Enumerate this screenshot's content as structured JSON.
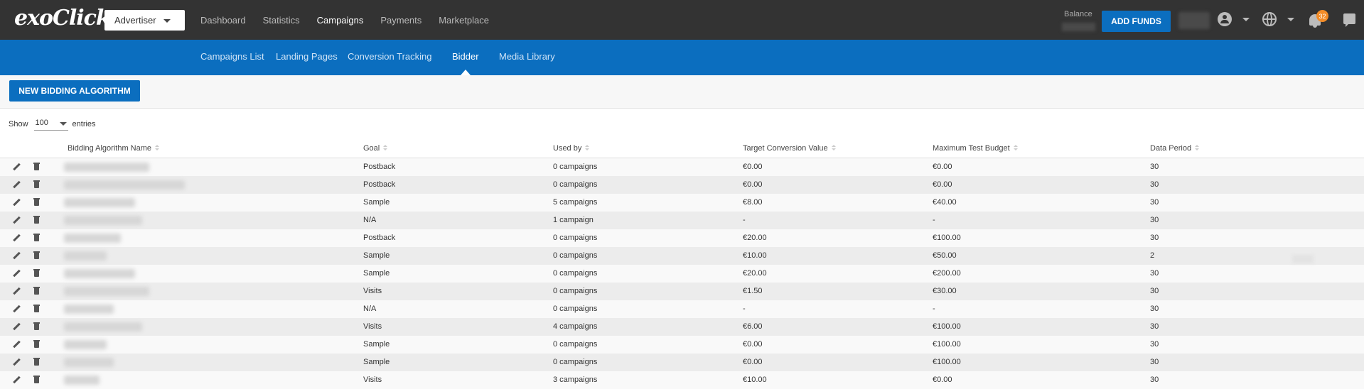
{
  "header": {
    "logo": "exoClick",
    "role_select": "Advertiser",
    "nav": [
      {
        "label": "Dashboard",
        "active": false
      },
      {
        "label": "Statistics",
        "active": false
      },
      {
        "label": "Campaigns",
        "active": true
      },
      {
        "label": "Payments",
        "active": false
      },
      {
        "label": "Marketplace",
        "active": false
      }
    ],
    "balance_label": "Balance",
    "add_funds_label": "ADD FUNDS",
    "notification_count": "32",
    "icons": [
      "user-icon",
      "globe-icon",
      "bell-icon",
      "chat-icon"
    ]
  },
  "subnav": {
    "items": [
      {
        "label": "Campaigns List",
        "active": false
      },
      {
        "label": "Landing Pages",
        "active": false
      },
      {
        "label": "Conversion Tracking",
        "active": false
      },
      {
        "label": "Bidder",
        "active": true
      },
      {
        "label": "Media Library",
        "active": false
      }
    ]
  },
  "toolbar": {
    "new_button_label": "NEW BIDDING ALGORITHM"
  },
  "entries": {
    "show_label": "Show",
    "value": "100",
    "suffix_label": "entries"
  },
  "table": {
    "columns": [
      "Bidding Algorithm Name",
      "Goal",
      "Used by",
      "Target Conversion Value",
      "Maximum Test Budget",
      "Data Period"
    ],
    "rows": [
      {
        "goal": "Postback",
        "used_by": "0 campaigns",
        "target": "€0.00",
        "budget": "€0.00",
        "period": "30"
      },
      {
        "goal": "Postback",
        "used_by": "0 campaigns",
        "target": "€0.00",
        "budget": "€0.00",
        "period": "30"
      },
      {
        "goal": "Sample",
        "used_by": "5 campaigns",
        "target": "€8.00",
        "budget": "€40.00",
        "period": "30"
      },
      {
        "goal": "N/A",
        "used_by": "1 campaign",
        "target": "-",
        "budget": "-",
        "period": "30"
      },
      {
        "goal": "Postback",
        "used_by": "0 campaigns",
        "target": "€20.00",
        "budget": "€100.00",
        "period": "30"
      },
      {
        "goal": "Sample",
        "used_by": "0 campaigns",
        "target": "€10.00",
        "budget": "€50.00",
        "period": "2"
      },
      {
        "goal": "Sample",
        "used_by": "0 campaigns",
        "target": "€20.00",
        "budget": "€200.00",
        "period": "30"
      },
      {
        "goal": "Visits",
        "used_by": "0 campaigns",
        "target": "€1.50",
        "budget": "€30.00",
        "period": "30"
      },
      {
        "goal": "N/A",
        "used_by": "0 campaigns",
        "target": "-",
        "budget": "-",
        "period": "30"
      },
      {
        "goal": "Visits",
        "used_by": "4 campaigns",
        "target": "€6.00",
        "budget": "€100.00",
        "period": "30"
      },
      {
        "goal": "Sample",
        "used_by": "0 campaigns",
        "target": "€0.00",
        "budget": "€100.00",
        "period": "30"
      },
      {
        "goal": "Sample",
        "used_by": "0 campaigns",
        "target": "€0.00",
        "budget": "€100.00",
        "period": "30"
      },
      {
        "goal": "Visits",
        "used_by": "3 campaigns",
        "target": "€10.00",
        "budget": "€0.00",
        "period": "30"
      }
    ]
  },
  "colors": {
    "topbar": "#333333",
    "accent": "#0b6ebf",
    "badge": "#f28c28"
  }
}
